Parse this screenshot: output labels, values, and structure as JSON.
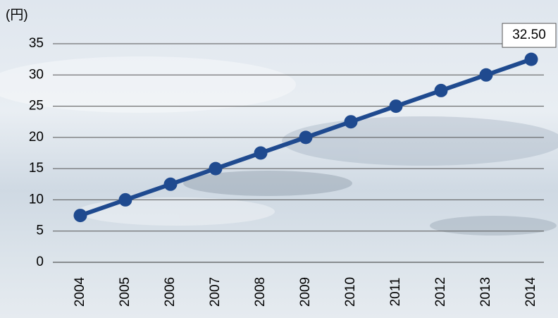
{
  "chart_data": {
    "type": "line",
    "y_label": "(円)",
    "categories": [
      "2004",
      "2005",
      "2006",
      "2007",
      "2008",
      "2009",
      "2010",
      "2011",
      "2012",
      "2013",
      "2014"
    ],
    "values": [
      7.5,
      10,
      12.5,
      15,
      17.5,
      20,
      22.5,
      25,
      27.5,
      30,
      32.5
    ],
    "value_labels": [
      null,
      null,
      null,
      null,
      null,
      null,
      null,
      null,
      null,
      null,
      "32.50"
    ],
    "color": "#1f4a8f",
    "ylim": [
      0,
      35
    ],
    "yticks": [
      0,
      5,
      10,
      15,
      20,
      25,
      30,
      35
    ],
    "grid": true
  }
}
